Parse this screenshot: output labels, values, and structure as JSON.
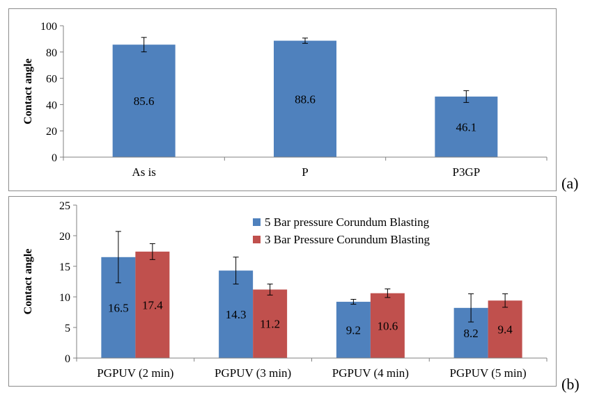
{
  "chart_data": [
    {
      "id": "a",
      "type": "bar",
      "panel_label": "(a)",
      "title": "",
      "xlabel": "",
      "ylabel": "Contact  angle",
      "ylim": [
        0,
        100
      ],
      "yticks": [
        0,
        20,
        40,
        60,
        80,
        100
      ],
      "categories": [
        "As is",
        "P",
        "P3GP"
      ],
      "series": [
        {
          "values": [
            85.6,
            88.6,
            46.1
          ],
          "errors": [
            5.5,
            2.0,
            4.5
          ],
          "color": "#4f81bd"
        }
      ],
      "data_labels": [
        "85.6",
        "88.6",
        "46.1"
      ],
      "grid": false,
      "legend": "none"
    },
    {
      "id": "b",
      "type": "bar",
      "panel_label": "(b)",
      "title": "",
      "xlabel": "",
      "ylabel": "Contact  angle",
      "ylim": [
        0,
        25
      ],
      "yticks": [
        0,
        5,
        10,
        15,
        20,
        25
      ],
      "categories": [
        "PGPUV (2 min)",
        "PGPUV (3 min)",
        "PGPUV (4 min)",
        "PGPUV (5 min)"
      ],
      "series": [
        {
          "name": "5 Bar pressure Corundum Blasting",
          "values": [
            16.5,
            14.3,
            9.2,
            8.2
          ],
          "errors": [
            4.2,
            2.2,
            0.4,
            2.3
          ],
          "color": "#4f81bd"
        },
        {
          "name": "3 Bar Pressure Corundum Blasting",
          "values": [
            17.4,
            11.2,
            10.6,
            9.4
          ],
          "errors": [
            1.3,
            0.9,
            0.7,
            1.1
          ],
          "color": "#c0504d"
        }
      ],
      "data_labels": [
        [
          "16.5",
          "14.3",
          "9.2",
          "8.2"
        ],
        [
          "17.4",
          "11.2",
          "10.6",
          "9.4"
        ]
      ],
      "grid": false,
      "legend": "top-right"
    }
  ]
}
